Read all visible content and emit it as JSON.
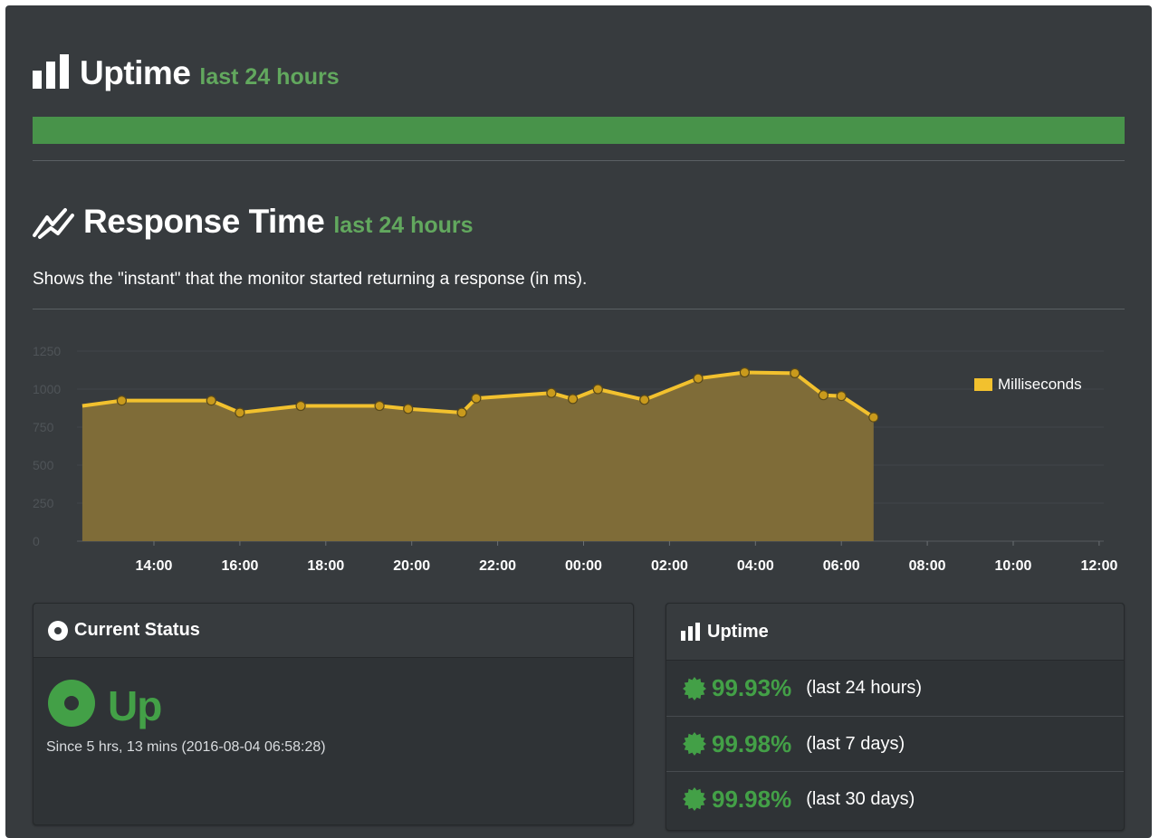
{
  "uptime_section": {
    "title": "Uptime",
    "subtitle": "last 24 hours",
    "bar_color": "#48934a"
  },
  "response_section": {
    "title": "Response Time",
    "subtitle": "last 24 hours",
    "description": "Shows the \"instant\" that the monitor started returning a response (in ms)."
  },
  "chart_data": {
    "type": "area",
    "x_tick_labels": [
      "14:00",
      "16:00",
      "18:00",
      "20:00",
      "22:00",
      "00:00",
      "02:00",
      "04:00",
      "06:00",
      "08:00",
      "10:00",
      "12:00"
    ],
    "y_tick_labels": [
      "0",
      "250",
      "500",
      "750",
      "1000",
      "1250"
    ],
    "ylim": [
      0,
      1250
    ],
    "legend": "Milliseconds",
    "legend_position": "top-right",
    "line_color": "#f2c12e",
    "fill_color": "#7f6c38",
    "grid": true,
    "series": [
      {
        "name": "Milliseconds",
        "x": [
          "12:20",
          "13:15",
          "15:20",
          "16:00",
          "17:25",
          "19:15",
          "19:55",
          "21:10",
          "21:30",
          "23:15",
          "23:45",
          "00:20",
          "01:25",
          "02:40",
          "03:45",
          "04:55",
          "05:35",
          "06:00",
          "06:45"
        ],
        "values": [
          890,
          925,
          925,
          845,
          890,
          890,
          870,
          845,
          940,
          975,
          935,
          1000,
          930,
          1070,
          1110,
          1105,
          960,
          955,
          815
        ]
      }
    ]
  },
  "current_status": {
    "header": "Current Status",
    "status": "Up",
    "since": "Since 5 hrs, 13 mins (2016-08-04 06:58:28)",
    "color": "#43a047"
  },
  "uptime_box": {
    "header": "Uptime",
    "rows": [
      {
        "pct": "99.93%",
        "period": "(last 24 hours)"
      },
      {
        "pct": "99.98%",
        "period": "(last 7 days)"
      },
      {
        "pct": "99.98%",
        "period": "(last 30 days)"
      }
    ]
  }
}
